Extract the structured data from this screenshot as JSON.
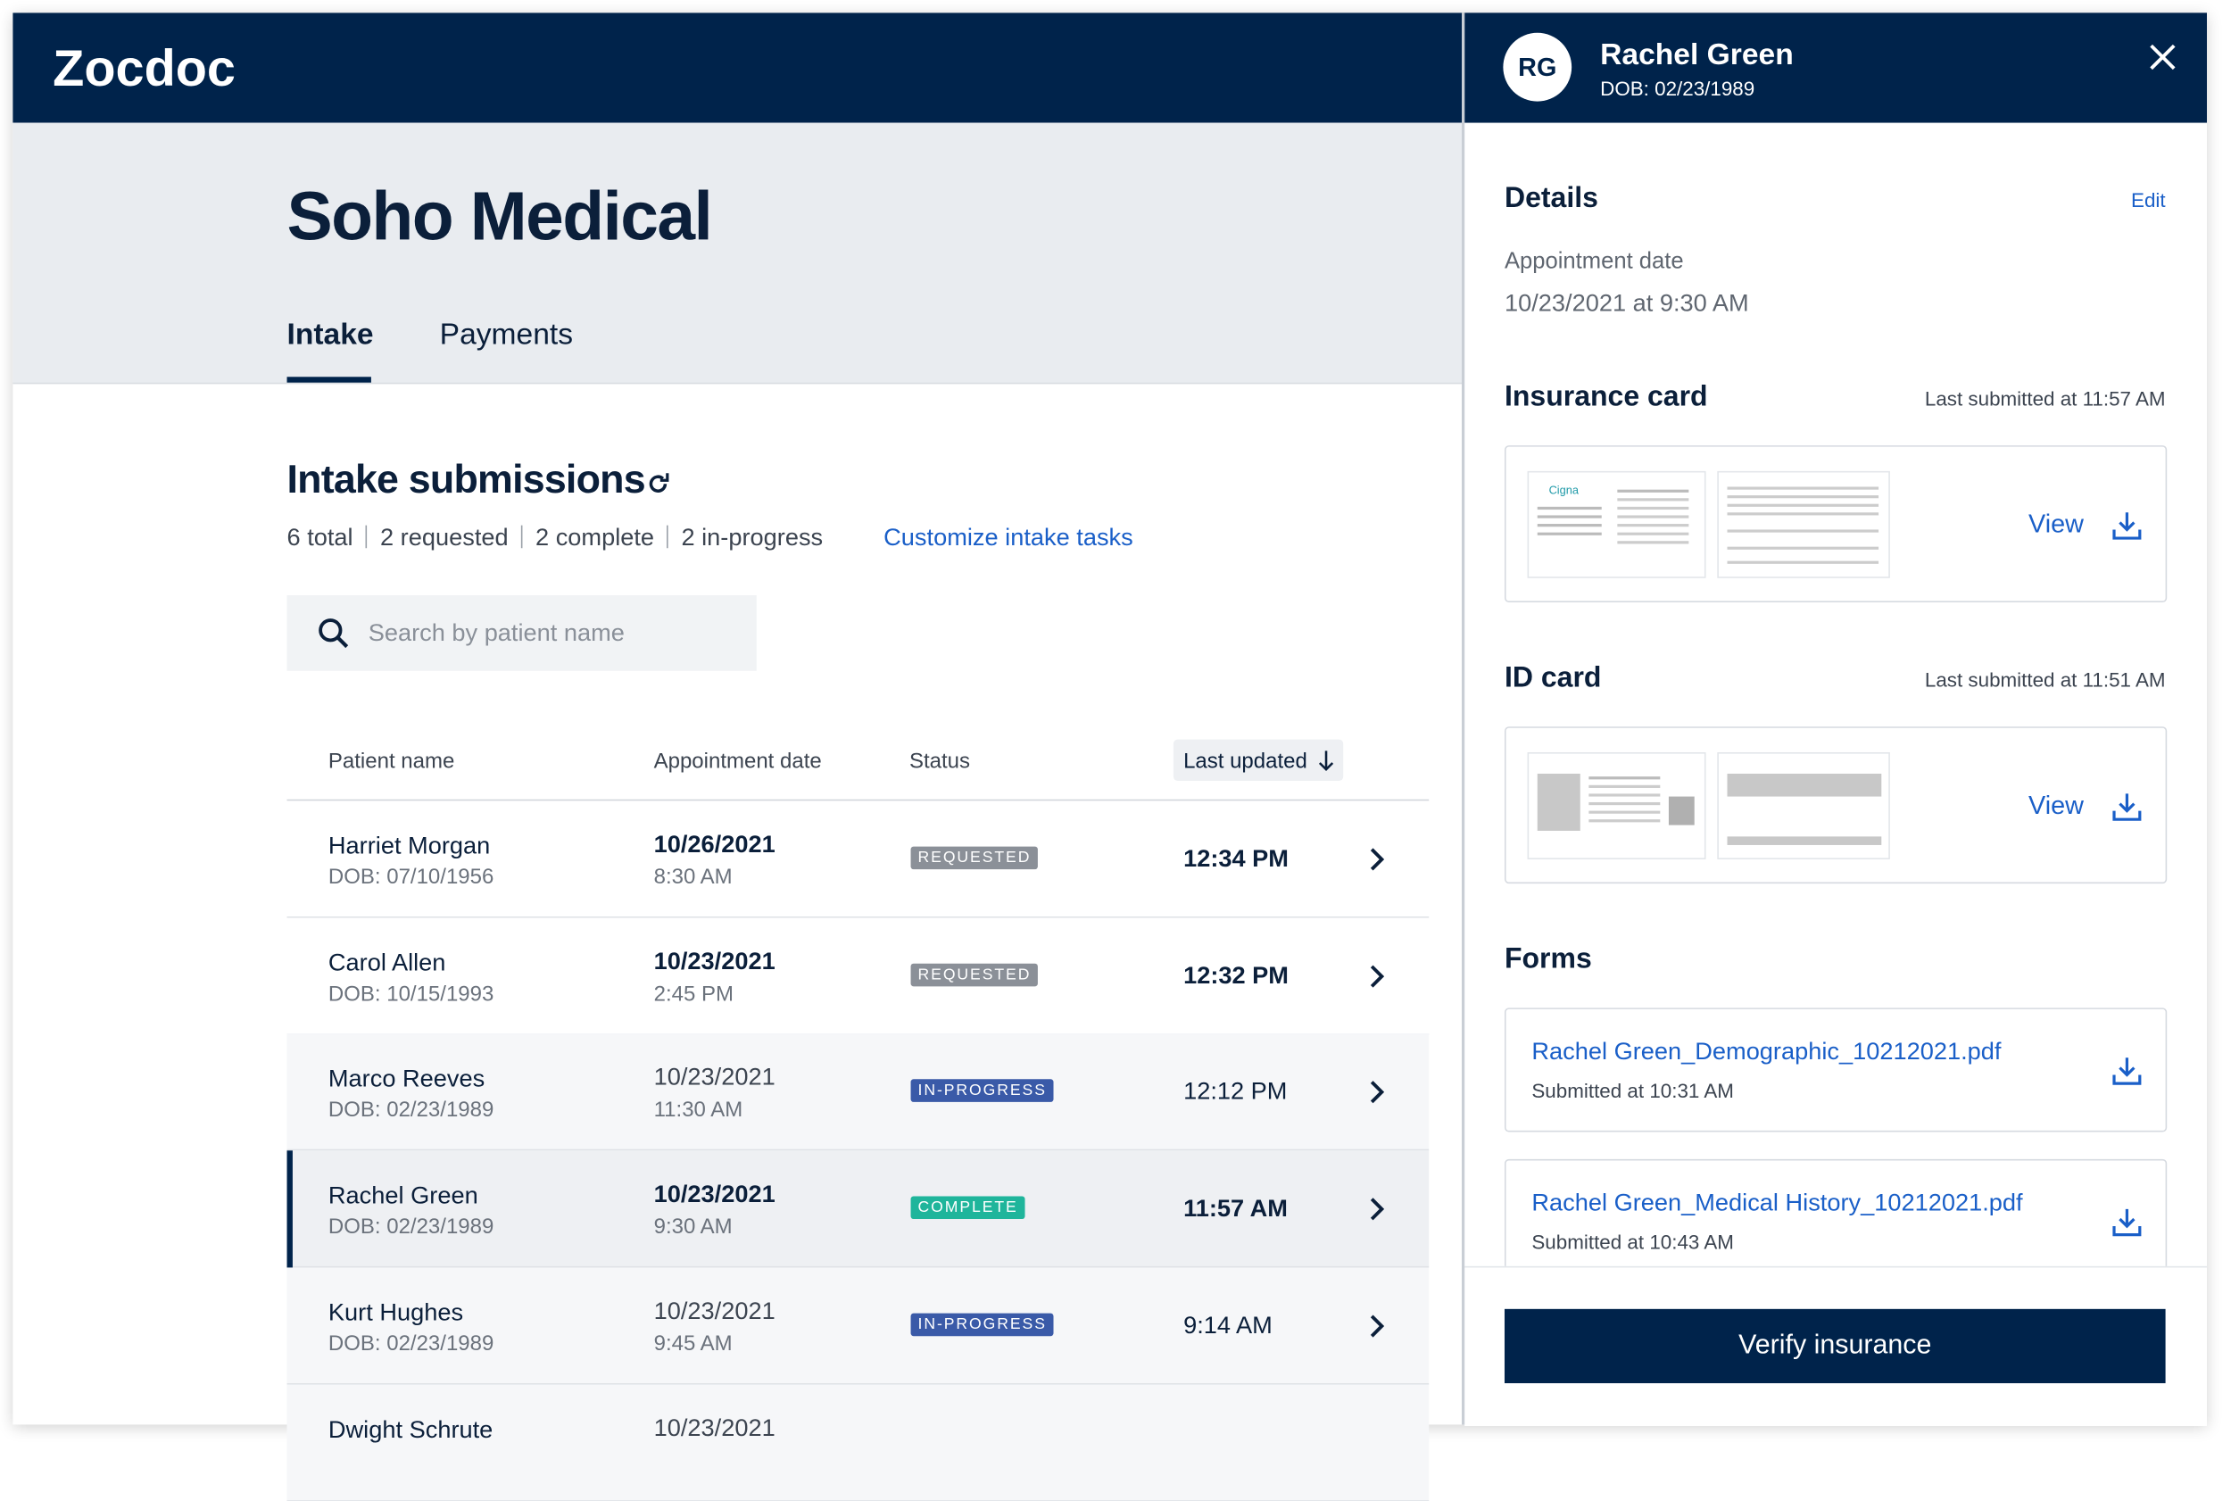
{
  "header": {
    "brand": "Zocdoc"
  },
  "page": {
    "title": "Soho Medical",
    "tabs": [
      "Intake",
      "Payments"
    ]
  },
  "submissions": {
    "title": "Intake submissions",
    "summary": [
      "6 total",
      "2 requested",
      "2 complete",
      "2 in-progress"
    ],
    "customize": "Customize intake tasks",
    "search_placeholder": "Search by patient name"
  },
  "table": {
    "columns": [
      "Patient name",
      "Appointment date",
      "Status",
      "Last updated"
    ],
    "rows": [
      {
        "name": "Harriet Morgan",
        "dob": "DOB: 07/10/1956",
        "date": "10/26/2021",
        "time": "8:30 AM",
        "status": "REQUESTED",
        "updated": "12:34 PM"
      },
      {
        "name": "Carol Allen",
        "dob": "DOB: 10/15/1993",
        "date": "10/23/2021",
        "time": "2:45 PM",
        "status": "REQUESTED",
        "updated": "12:32 PM"
      },
      {
        "name": "Marco Reeves",
        "dob": "DOB: 02/23/1989",
        "date": "10/23/2021",
        "time": "11:30 AM",
        "status": "IN-PROGRESS",
        "updated": "12:12 PM"
      },
      {
        "name": "Rachel Green",
        "dob": "DOB: 02/23/1989",
        "date": "10/23/2021",
        "time": "9:30 AM",
        "status": "COMPLETE",
        "updated": "11:57 AM"
      },
      {
        "name": "Kurt Hughes",
        "dob": "DOB: 02/23/1989",
        "date": "10/23/2021",
        "time": "9:45 AM",
        "status": "IN-PROGRESS",
        "updated": "9:14 AM"
      },
      {
        "name": "Dwight Schrute",
        "date": "10/23/2021"
      }
    ]
  },
  "panel": {
    "initials": "RG",
    "name": "Rachel Green",
    "dob": "DOB: 02/23/1989",
    "details_title": "Details",
    "edit": "Edit",
    "appointment_label": "Appointment date",
    "appointment_value": "10/23/2021 at 9:30 AM",
    "insurance": {
      "title": "Insurance card",
      "submitted": "Last submitted at 11:57 AM",
      "view": "View",
      "brand": "Cigna"
    },
    "id_card": {
      "title": "ID card",
      "submitted": "Last submitted at 11:51 AM",
      "view": "View"
    },
    "forms_title": "Forms",
    "forms": [
      {
        "file": "Rachel Green_Demographic_10212021.pdf",
        "submitted": "Submitted at 10:31 AM"
      },
      {
        "file": "Rachel Green_Medical History_10212021.pdf",
        "submitted": "Submitted at 10:43 AM"
      }
    ],
    "button": "Verify insurance"
  }
}
